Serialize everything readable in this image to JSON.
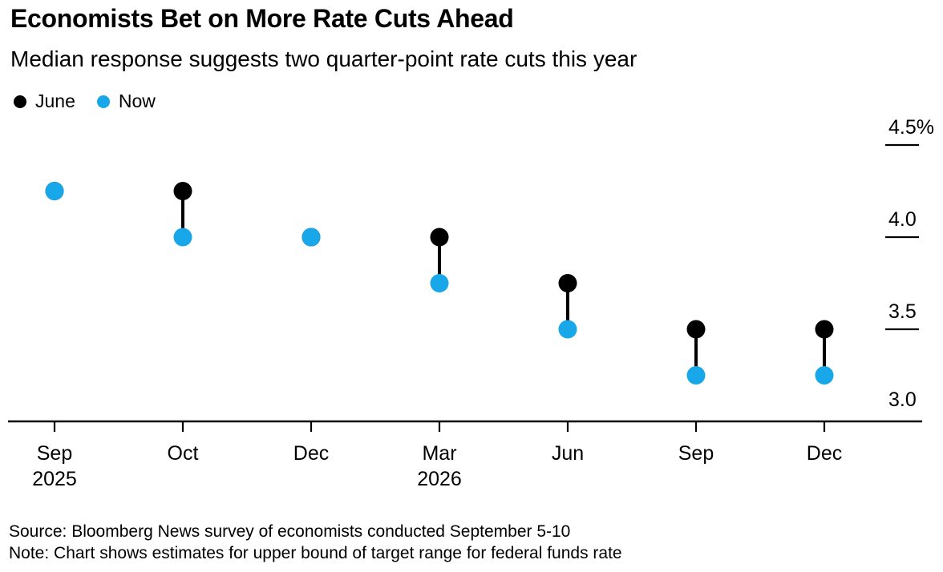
{
  "title": "Economists Bet on More Rate Cuts Ahead",
  "subtitle": "Median response suggests two quarter-point rate cuts this year",
  "legend": [
    {
      "label": "June",
      "color": "#000000"
    },
    {
      "label": "Now",
      "color": "#18a7e8"
    }
  ],
  "footer": {
    "source_line": "Source: Bloomberg News survey of economists conducted September 5-10",
    "note_line": "Note: Chart shows estimates for upper bound of target range for federal funds rate"
  },
  "chart_data": {
    "type": "scatter",
    "subtype": "dumbbell",
    "title": "Economists Bet on More Rate Cuts Ahead",
    "subtitle": "Median response suggests two quarter-point rate cuts this year",
    "categories": [
      {
        "label": "Sep",
        "sublabel": "2025"
      },
      {
        "label": "Oct"
      },
      {
        "label": "Dec"
      },
      {
        "label": "Mar",
        "sublabel": "2026"
      },
      {
        "label": "Jun"
      },
      {
        "label": "Sep"
      },
      {
        "label": "Dec"
      }
    ],
    "series": [
      {
        "name": "June",
        "color": "#000000",
        "values": [
          4.25,
          4.25,
          4.0,
          4.0,
          3.75,
          3.5,
          3.5
        ]
      },
      {
        "name": "Now",
        "color": "#18a7e8",
        "values": [
          4.25,
          4.0,
          4.0,
          3.75,
          3.5,
          3.25,
          3.25
        ]
      }
    ],
    "yticks": [
      {
        "label": "4.5%",
        "value": 4.5,
        "tick": true
      },
      {
        "label": "4.0",
        "value": 4.0,
        "tick": true
      },
      {
        "label": "3.5",
        "value": 3.5,
        "tick": true
      },
      {
        "label": "3.0",
        "value": 3.0,
        "tick": false
      }
    ],
    "ylim": [
      3.0,
      4.5
    ],
    "unit": "%",
    "grid": false,
    "legend_position": "top-left",
    "connector_color": "#000000",
    "axis_color": "#000000"
  }
}
